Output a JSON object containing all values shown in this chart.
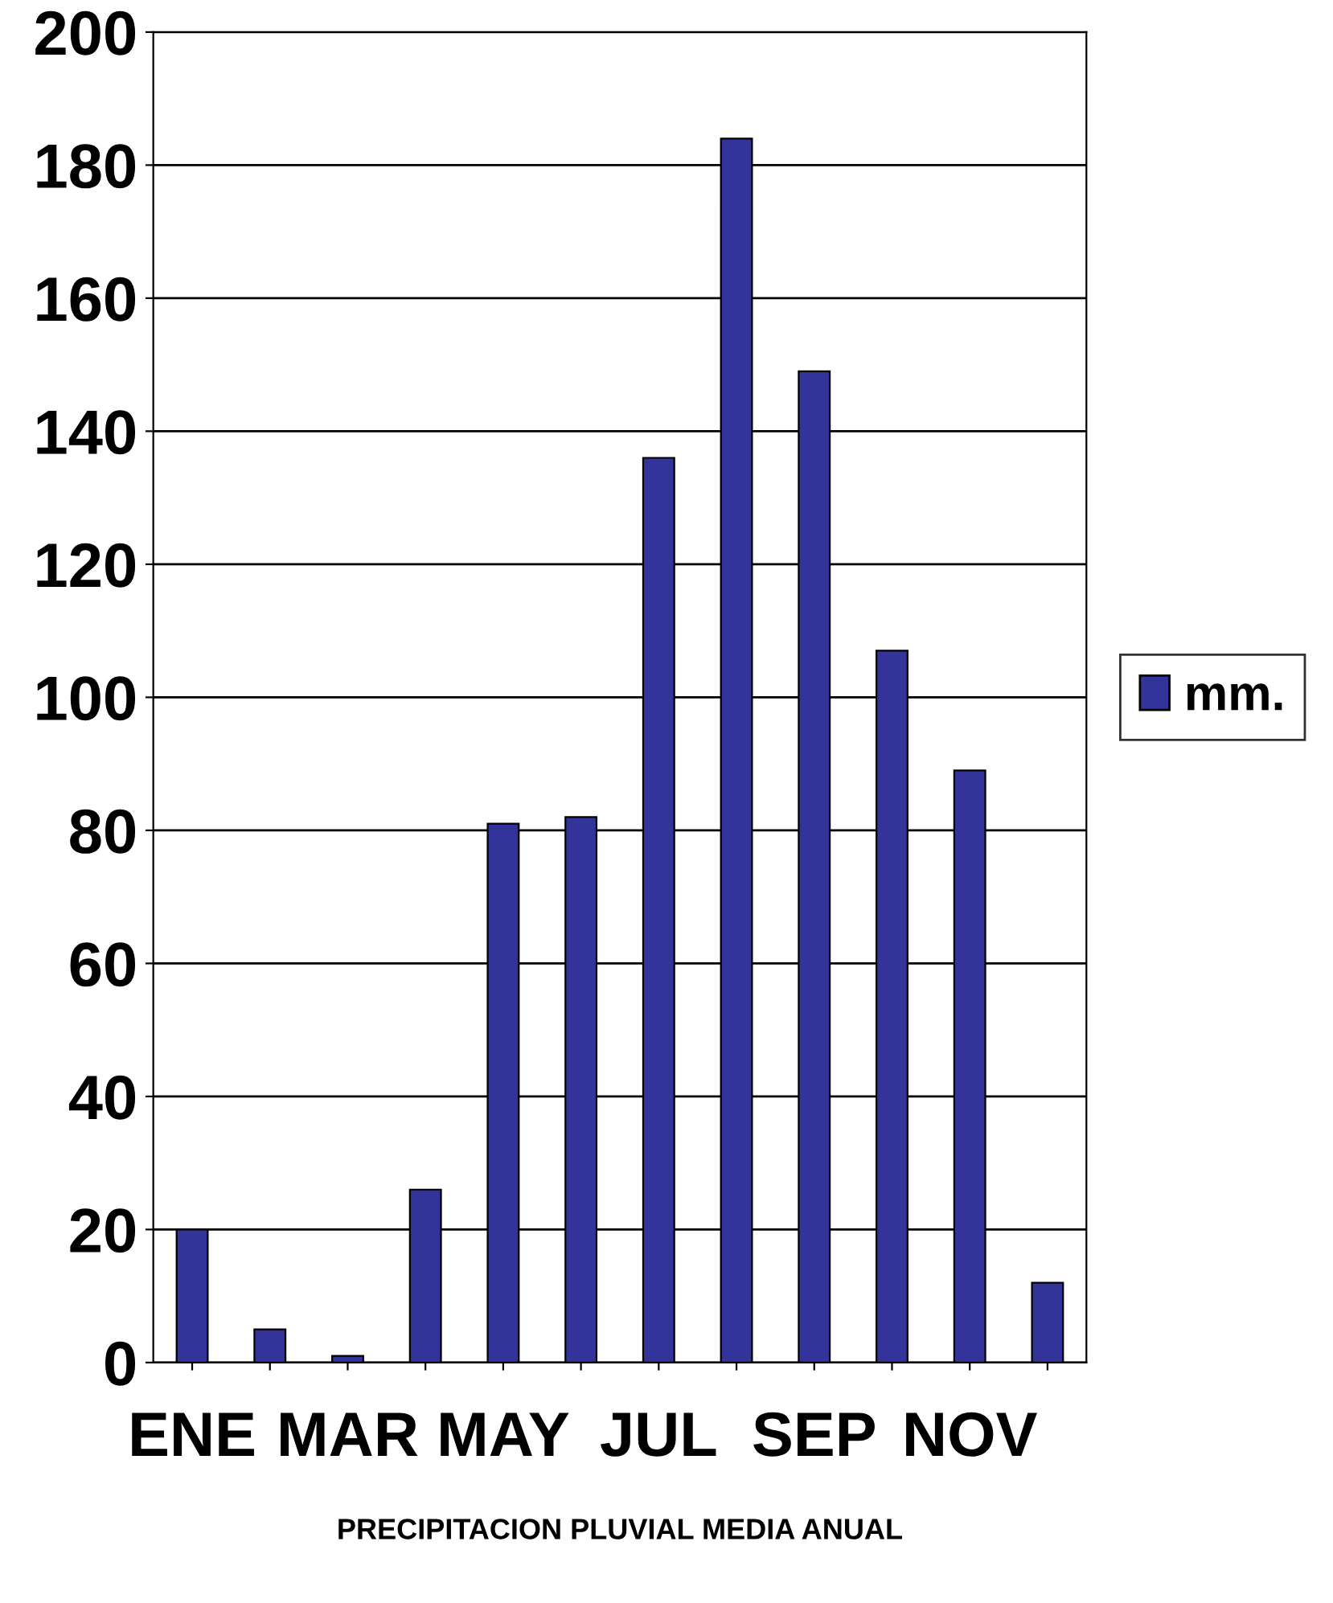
{
  "chart_data": {
    "type": "bar",
    "xlabel": "PRECIPITACION PLUVIAL MEDIA ANUAL",
    "categories": [
      "ENE",
      null,
      "MAR",
      null,
      "MAY",
      null,
      "JUL",
      null,
      "SEP",
      null,
      "NOV",
      null
    ],
    "series": [
      {
        "name": "mm.",
        "color": "#333399",
        "values": [
          20,
          5,
          1,
          26,
          81,
          82,
          136,
          184,
          149,
          107,
          89,
          12
        ]
      }
    ],
    "ylim": [
      0,
      200
    ],
    "yticks": [
      0,
      20,
      40,
      60,
      80,
      100,
      120,
      140,
      160,
      180,
      200
    ],
    "grid": "y",
    "legend": "right"
  }
}
